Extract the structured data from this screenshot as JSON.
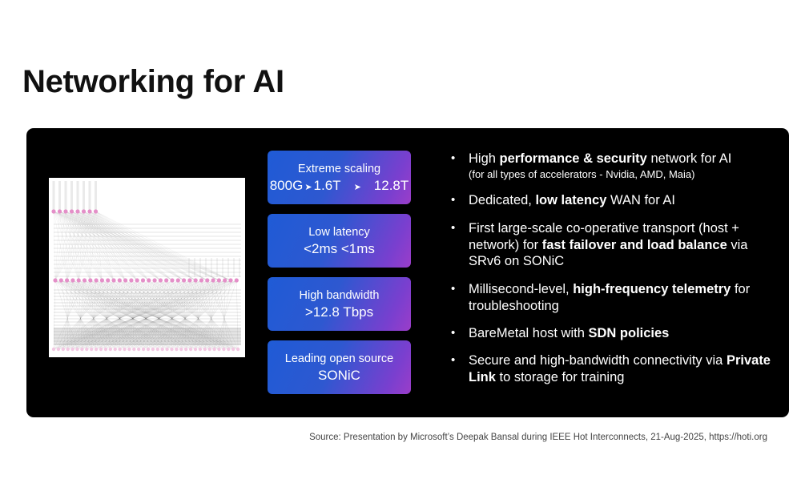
{
  "title": "Networking for AI",
  "cards": [
    {
      "line1": "Extreme scaling",
      "values": [
        "800G",
        "1.6T",
        "12.8T"
      ]
    },
    {
      "line1": "Low latency",
      "line2": "<2ms <1ms"
    },
    {
      "line1": "High bandwidth",
      "line2": ">12.8 Tbps"
    },
    {
      "line1": "Leading open source",
      "line2": "SONiC"
    }
  ],
  "bullets": [
    {
      "pre": "High ",
      "bold": "performance & security",
      "post": " network for AI",
      "sub": "(for all types of accelerators - Nvidia, AMD, Maia)"
    },
    {
      "pre": "Dedicated, ",
      "bold": "low latency",
      "post": " WAN for AI"
    },
    {
      "pre": "First large-scale co-operative transport (host + network) for ",
      "bold": "fast failover and load balance",
      "post": " via SRv6 on SONiC"
    },
    {
      "pre": "Millisecond-level, ",
      "bold": "high-frequency telemetry",
      "post": " for troubleshooting"
    },
    {
      "pre": "BareMetal host with ",
      "bold": "SDN policies",
      "post": ""
    },
    {
      "pre": "Secure and high-bandwidth connectivity via ",
      "bold": "Private Link",
      "post": " to storage for training"
    }
  ],
  "source": "Source: Presentation by Microsoft’s Deepak Bansal during IEEE Hot Interconnects, 21-Aug-2025, https://hoti.org",
  "colors": {
    "panel": "#000000",
    "card_start": "#1f5bd6",
    "card_end": "#9b3ec9",
    "node_pink": "#e48fc8"
  }
}
